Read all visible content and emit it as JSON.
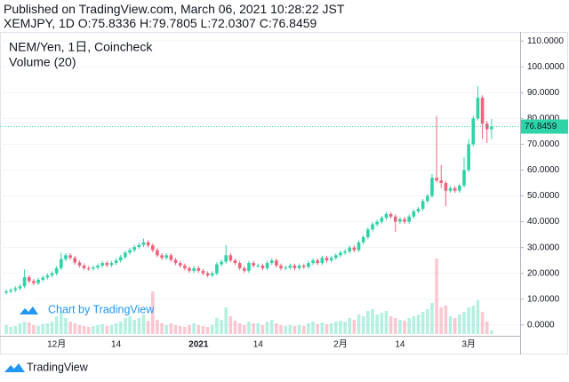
{
  "header": {
    "published": "Published on TradingView.com, March 06, 2021 10:28:22 JST",
    "symbol_line": "XEMJPY, 1D O:75.8336 H:79.7805 L:72.0307 C:76.8459"
  },
  "footer": {
    "brand": "TradingView"
  },
  "chart_data": {
    "type": "candlestick",
    "title": "NEM/Yen, 1日, Coincheck",
    "volume_label": "Volume (20)",
    "watermark": "Chart by TradingView",
    "up_color": "#2fd3a8",
    "down_color": "#f0627a",
    "categories": [
      null,
      null,
      null,
      null,
      null,
      null,
      null,
      null,
      null,
      null,
      null,
      "12月",
      null,
      null,
      null,
      null,
      null,
      null,
      null,
      null,
      null,
      null,
      null,
      null,
      "14",
      null,
      null,
      null,
      null,
      null,
      null,
      null,
      null,
      null,
      null,
      null,
      null,
      null,
      null,
      null,
      null,
      null,
      "2021",
      null,
      null,
      null,
      null,
      null,
      null,
      null,
      null,
      null,
      null,
      null,
      null,
      "14",
      null,
      null,
      null,
      null,
      null,
      null,
      null,
      null,
      null,
      null,
      null,
      null,
      null,
      null,
      null,
      null,
      null,
      "2月",
      null,
      null,
      null,
      null,
      null,
      null,
      null,
      null,
      null,
      null,
      null,
      null,
      "14",
      null,
      null,
      null,
      null,
      null,
      null,
      null,
      null,
      null,
      null,
      null,
      null,
      null,
      null,
      "3月",
      null,
      null,
      null,
      null,
      null
    ],
    "open": [
      12.5,
      13.0,
      13.5,
      14.2,
      15.0,
      18.5,
      17.0,
      16.2,
      17.5,
      18.4,
      19.2,
      20.0,
      22.0,
      25.5,
      27.0,
      26.0,
      24.2,
      23.0,
      22.0,
      21.8,
      22.3,
      23.0,
      24.0,
      23.2,
      24.0,
      25.0,
      26.3,
      28.0,
      29.0,
      30.2,
      31.0,
      32.0,
      30.8,
      29.0,
      27.0,
      26.0,
      27.0,
      25.2,
      24.0,
      23.0,
      22.0,
      21.0,
      22.0,
      21.0,
      20.0,
      19.2,
      20.0,
      23.5,
      24.5,
      27.0,
      25.0,
      24.0,
      22.0,
      21.0,
      24.0,
      23.0,
      23.0,
      22.0,
      24.0,
      25.0,
      23.0,
      22.0,
      22.2,
      23.0,
      22.0,
      23.0,
      22.5,
      24.0,
      25.0,
      24.0,
      26.0,
      25.0,
      26.0,
      27.0,
      28.0,
      28.5,
      30.0,
      29.0,
      32.0,
      34.0,
      37.0,
      39.0,
      40.0,
      41.5,
      43.0,
      42.0,
      40.0,
      41.0,
      40.0,
      42.0,
      44.0,
      45.0,
      48.0,
      50.0,
      57.0,
      56.0,
      55.0,
      52.0,
      53.0,
      52.0,
      54.0,
      60.0,
      70.0,
      80.0,
      88.0,
      78.0,
      75.8336
    ],
    "high": [
      13.8,
      14.3,
      15.0,
      15.8,
      21.5,
      19.3,
      17.8,
      18.3,
      19.2,
      20.0,
      20.8,
      22.8,
      28.0,
      27.8,
      27.8,
      26.8,
      25.0,
      23.8,
      22.8,
      23.1,
      23.8,
      24.8,
      24.8,
      24.8,
      25.8,
      27.1,
      28.8,
      29.8,
      31.0,
      31.8,
      33.5,
      32.8,
      31.6,
      29.8,
      27.8,
      27.8,
      27.8,
      26.0,
      24.8,
      23.8,
      22.8,
      22.8,
      22.8,
      21.8,
      20.8,
      20.8,
      24.3,
      25.3,
      31.0,
      27.8,
      25.8,
      24.8,
      22.8,
      24.8,
      24.8,
      23.8,
      23.8,
      24.8,
      25.8,
      25.8,
      23.8,
      23.0,
      23.8,
      23.8,
      23.8,
      23.8,
      24.8,
      25.8,
      25.8,
      26.8,
      26.8,
      26.8,
      27.8,
      28.8,
      29.3,
      30.8,
      30.8,
      32.8,
      34.8,
      37.8,
      39.8,
      40.8,
      42.3,
      43.8,
      43.8,
      42.8,
      41.8,
      41.8,
      42.8,
      44.8,
      45.8,
      48.8,
      50.8,
      58.5,
      81.0,
      62.0,
      55.8,
      53.8,
      53.8,
      54.8,
      65.0,
      72.0,
      81.0,
      92.5,
      89.0,
      79.0,
      79.7805
    ],
    "low": [
      11.7,
      12.2,
      12.7,
      13.4,
      14.2,
      16.2,
      15.4,
      15.4,
      16.7,
      17.6,
      18.4,
      19.2,
      21.2,
      24.7,
      25.2,
      23.4,
      22.2,
      21.2,
      21.0,
      21.0,
      21.5,
      22.2,
      22.4,
      22.4,
      23.2,
      24.2,
      25.5,
      27.2,
      28.2,
      29.4,
      30.2,
      30.0,
      28.2,
      26.2,
      25.2,
      25.2,
      24.4,
      23.2,
      22.2,
      21.2,
      20.2,
      20.2,
      20.2,
      19.2,
      18.4,
      18.4,
      19.2,
      22.7,
      23.7,
      24.2,
      23.2,
      21.2,
      20.2,
      20.2,
      22.2,
      22.2,
      21.2,
      21.2,
      23.2,
      22.2,
      21.2,
      21.2,
      21.4,
      21.2,
      21.2,
      21.7,
      21.7,
      23.2,
      23.2,
      23.2,
      24.2,
      24.2,
      25.2,
      26.2,
      27.2,
      27.7,
      28.2,
      28.2,
      31.2,
      33.2,
      36.2,
      38.2,
      39.2,
      40.7,
      41.2,
      36.0,
      39.2,
      39.2,
      39.2,
      41.2,
      43.2,
      44.2,
      47.2,
      49.2,
      55.2,
      53.0,
      46.0,
      51.2,
      51.2,
      51.2,
      53.2,
      59.2,
      69.2,
      79.2,
      72.0,
      70.5,
      72.0307
    ],
    "close": [
      13.0,
      13.5,
      14.2,
      15.0,
      18.5,
      17.0,
      16.2,
      17.5,
      18.4,
      19.2,
      20.0,
      22.0,
      25.5,
      27.0,
      26.0,
      24.2,
      23.0,
      22.0,
      21.8,
      22.3,
      23.0,
      24.0,
      23.2,
      24.0,
      25.0,
      26.3,
      28.0,
      29.0,
      30.2,
      31.0,
      32.0,
      30.8,
      29.0,
      27.0,
      26.0,
      27.0,
      25.2,
      24.0,
      23.0,
      22.0,
      21.0,
      22.0,
      21.0,
      20.0,
      19.2,
      20.0,
      23.5,
      24.5,
      27.0,
      25.0,
      24.0,
      22.0,
      21.0,
      24.0,
      23.0,
      23.0,
      22.0,
      24.0,
      25.0,
      23.0,
      22.0,
      22.2,
      23.0,
      22.0,
      23.0,
      22.5,
      24.0,
      25.0,
      24.0,
      26.0,
      25.0,
      26.0,
      27.0,
      28.0,
      28.5,
      30.0,
      29.0,
      32.0,
      34.0,
      37.0,
      39.0,
      40.0,
      41.5,
      43.0,
      42.0,
      40.0,
      41.0,
      40.0,
      42.0,
      44.0,
      45.0,
      48.0,
      50.0,
      57.0,
      56.0,
      55.0,
      52.0,
      53.0,
      52.0,
      54.0,
      60.0,
      70.0,
      80.0,
      88.0,
      78.0,
      75.8336,
      76.8459
    ],
    "volume": [
      10,
      8,
      9,
      12,
      22,
      15,
      10,
      9,
      11,
      12,
      14,
      20,
      25,
      18,
      14,
      12,
      10,
      9,
      8,
      9,
      10,
      11,
      9,
      10,
      12,
      14,
      18,
      20,
      16,
      18,
      22,
      15,
      48,
      16,
      12,
      10,
      12,
      10,
      9,
      8,
      10,
      12,
      10,
      9,
      8,
      10,
      18,
      16,
      30,
      20,
      15,
      12,
      10,
      14,
      12,
      12,
      10,
      14,
      16,
      12,
      10,
      9,
      10,
      9,
      10,
      9,
      12,
      14,
      11,
      13,
      11,
      12,
      14,
      15,
      14,
      18,
      16,
      22,
      20,
      26,
      28,
      22,
      24,
      26,
      20,
      18,
      16,
      15,
      18,
      20,
      22,
      25,
      28,
      35,
      85,
      30,
      32,
      20,
      18,
      22,
      25,
      30,
      32,
      38,
      25,
      14,
      4
    ],
    "last_price": 76.8459,
    "ylim": [
      -4.2,
      113.5
    ],
    "yticks": [
      {
        "value": 0,
        "label": "0.0000"
      },
      {
        "value": 10,
        "label": "10.0000"
      },
      {
        "value": 20,
        "label": "20.0000"
      },
      {
        "value": 30,
        "label": "30.0000"
      },
      {
        "value": 40,
        "label": "40.0000"
      },
      {
        "value": 50,
        "label": "50.0000"
      },
      {
        "value": 60,
        "label": "60.0000"
      },
      {
        "value": 70,
        "label": "70.0000"
      },
      {
        "value": 80,
        "label": "80.0000"
      },
      {
        "value": 90,
        "label": "90.0000"
      },
      {
        "value": 100,
        "label": "100.0000"
      },
      {
        "value": 110,
        "label": "110.0000"
      }
    ],
    "grid": true
  }
}
